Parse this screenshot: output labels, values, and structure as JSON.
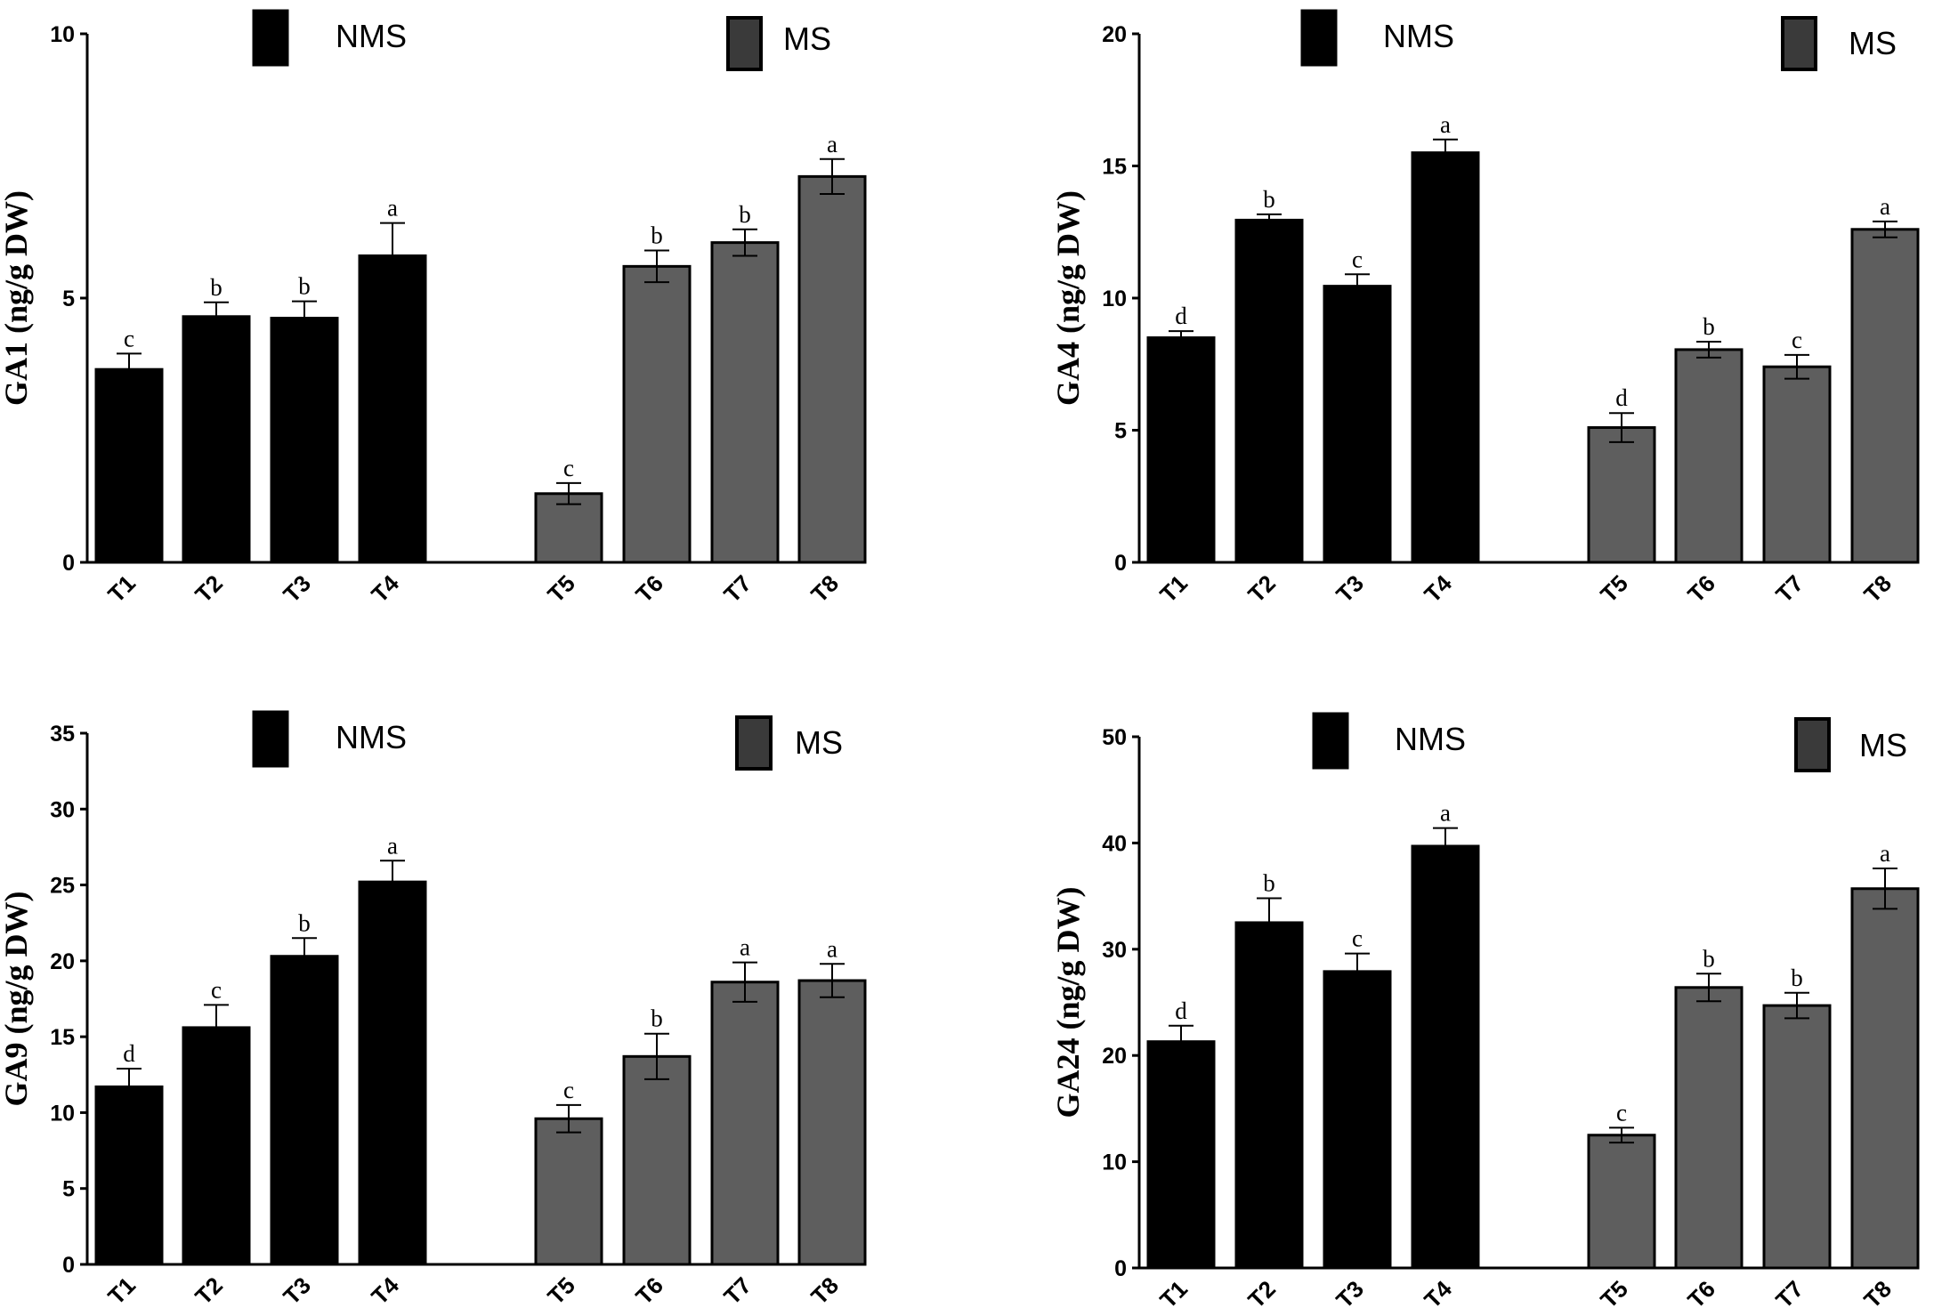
{
  "colors": {
    "nms": "#000000",
    "ms": "#5e5e5e",
    "axis": "#000000",
    "background": "#ffffff"
  },
  "legend": {
    "nms_label": "NMS",
    "ms_label": "MS"
  },
  "chart_data": [
    {
      "type": "bar",
      "panel": "top-left",
      "ylabel": "GA1 (ng/g DW)",
      "ylim": [
        0,
        10
      ],
      "yticks": [
        0,
        5,
        10
      ],
      "categories": [
        "T1",
        "T2",
        "T3",
        "T4",
        "T5",
        "T6",
        "T7",
        "T8"
      ],
      "groups": [
        "NMS",
        "NMS",
        "NMS",
        "NMS",
        "MS",
        "MS",
        "MS",
        "MS"
      ],
      "values": [
        3.65,
        4.65,
        4.62,
        5.8,
        1.3,
        5.6,
        6.05,
        7.3
      ],
      "errors": [
        0.3,
        0.27,
        0.32,
        0.62,
        0.2,
        0.3,
        0.25,
        0.33
      ],
      "letters": [
        "c",
        "b",
        "b",
        "a",
        "c",
        "b",
        "b",
        "a"
      ],
      "legend_position": "top"
    },
    {
      "type": "bar",
      "panel": "top-right",
      "ylabel": "GA4 (ng/g DW)",
      "ylim": [
        0,
        20
      ],
      "yticks": [
        0,
        5,
        10,
        15,
        20
      ],
      "categories": [
        "T1",
        "T2",
        "T3",
        "T4",
        "T5",
        "T6",
        "T7",
        "T8"
      ],
      "groups": [
        "NMS",
        "NMS",
        "NMS",
        "NMS",
        "MS",
        "MS",
        "MS",
        "MS"
      ],
      "values": [
        8.5,
        12.95,
        10.45,
        15.5,
        5.1,
        8.05,
        7.4,
        12.6
      ],
      "errors": [
        0.25,
        0.22,
        0.45,
        0.5,
        0.55,
        0.3,
        0.45,
        0.3
      ],
      "letters": [
        "d",
        "b",
        "c",
        "a",
        "d",
        "b",
        "c",
        "a"
      ],
      "legend_position": "top"
    },
    {
      "type": "bar",
      "panel": "bottom-left",
      "ylabel": "GA9 (ng/g DW)",
      "ylim": [
        0,
        35
      ],
      "yticks": [
        0,
        5,
        10,
        15,
        20,
        25,
        30,
        35
      ],
      "categories": [
        "T1",
        "T2",
        "T3",
        "T4",
        "T5",
        "T6",
        "T7",
        "T8"
      ],
      "groups": [
        "NMS",
        "NMS",
        "NMS",
        "NMS",
        "MS",
        "MS",
        "MS",
        "MS"
      ],
      "values": [
        11.7,
        15.6,
        20.3,
        25.2,
        9.6,
        13.7,
        18.6,
        18.7
      ],
      "errors": [
        1.2,
        1.5,
        1.2,
        1.4,
        0.9,
        1.5,
        1.3,
        1.1
      ],
      "letters": [
        "d",
        "c",
        "b",
        "a",
        "c",
        "b",
        "a",
        "a"
      ],
      "legend_position": "top"
    },
    {
      "type": "bar",
      "panel": "bottom-right",
      "ylabel": "GA24 (ng/g DW)",
      "ylim": [
        0,
        50
      ],
      "yticks": [
        0,
        10,
        20,
        30,
        40,
        50
      ],
      "categories": [
        "T1",
        "T2",
        "T3",
        "T4",
        "T5",
        "T6",
        "T7",
        "T8"
      ],
      "groups": [
        "NMS",
        "NMS",
        "NMS",
        "NMS",
        "MS",
        "MS",
        "MS",
        "MS"
      ],
      "values": [
        21.3,
        32.5,
        27.9,
        39.7,
        12.5,
        26.4,
        24.7,
        35.7
      ],
      "errors": [
        1.5,
        2.3,
        1.7,
        1.7,
        0.7,
        1.3,
        1.2,
        1.9
      ],
      "letters": [
        "d",
        "b",
        "c",
        "a",
        "c",
        "b",
        "b",
        "a"
      ],
      "legend_position": "top"
    }
  ]
}
